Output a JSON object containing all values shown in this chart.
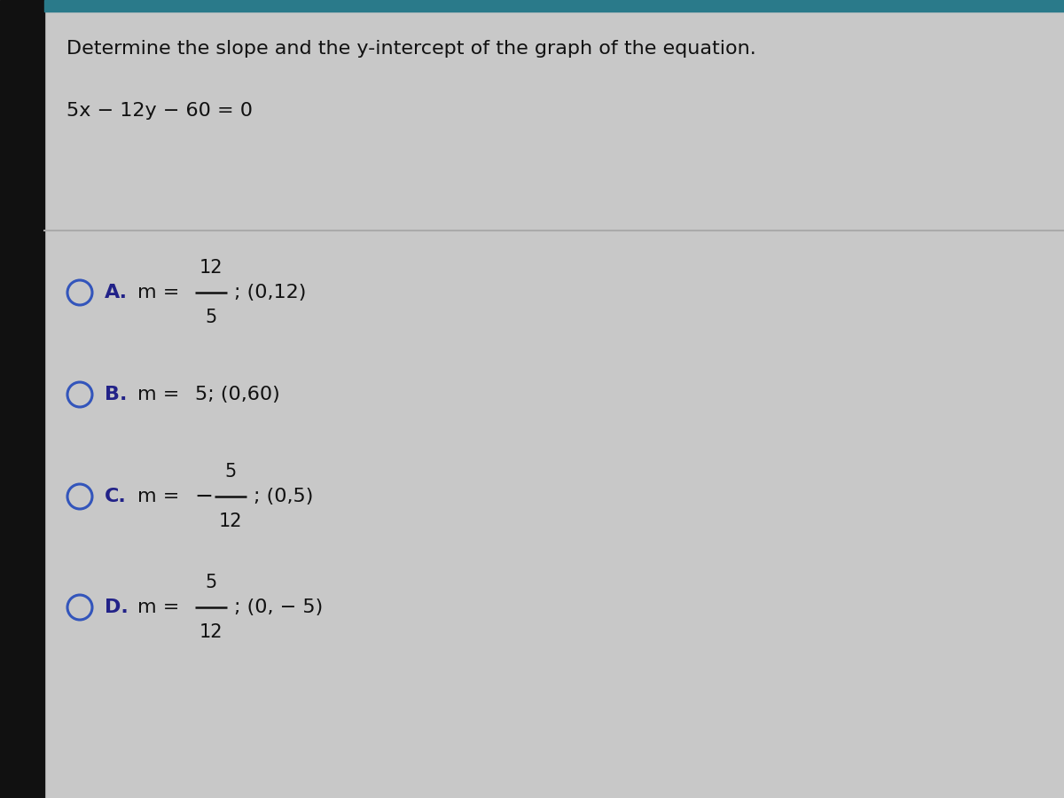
{
  "title": "Determine the slope and the y-intercept of the graph of the equation.",
  "equation": "5x − 12y − 60 = 0",
  "bg_color": "#c8c8c8",
  "left_bar_color": "#111111",
  "top_strip_color": "#2a7a8a",
  "separator_color": "#aaaaaa",
  "circle_color": "#3355bb",
  "label_bold_color": "#222288",
  "text_color": "#111111",
  "title_fontsize": 16,
  "equation_fontsize": 16,
  "option_fontsize": 16,
  "options": [
    {
      "letter": "A",
      "has_fraction": true,
      "numerator": "12",
      "denominator": "5",
      "sign": "",
      "intercept": "; (0,12)"
    },
    {
      "letter": "B",
      "has_fraction": false,
      "slope_text": "5; (0,60)",
      "sign": ""
    },
    {
      "letter": "C",
      "has_fraction": true,
      "numerator": "5",
      "denominator": "12",
      "sign": "− ",
      "intercept": "; (0,5)"
    },
    {
      "letter": "D",
      "has_fraction": true,
      "numerator": "5",
      "denominator": "12",
      "sign": "",
      "intercept": "; (0, − 5)"
    }
  ]
}
